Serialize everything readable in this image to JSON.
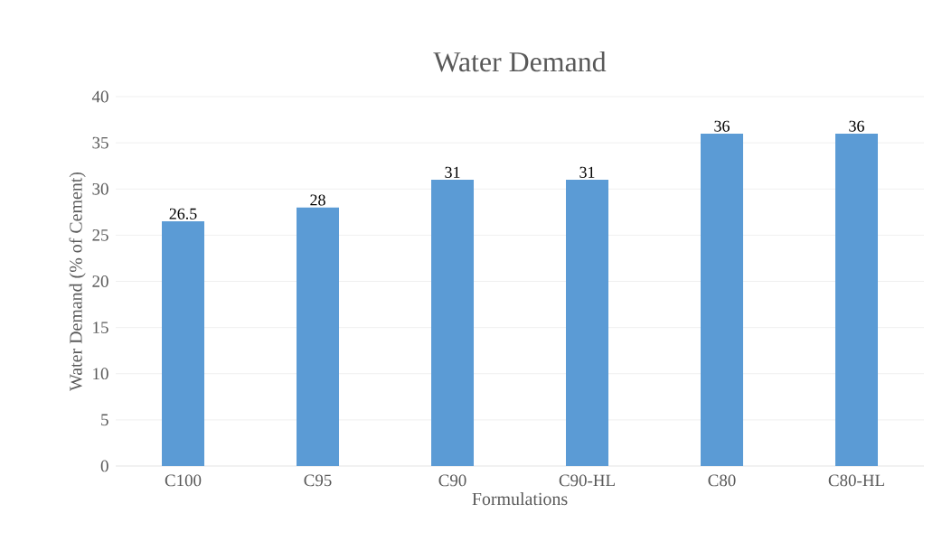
{
  "chart_data": {
    "type": "bar",
    "title": "Water Demand",
    "xlabel": "Formulations",
    "ylabel": "Water Demand (% of Cement)",
    "categories": [
      "C100",
      "C95",
      "C90",
      "C90-HL",
      "C80",
      "C80-HL"
    ],
    "values": [
      26.5,
      28,
      31,
      31,
      36,
      36
    ],
    "color": "#5b9bd5",
    "ylim": [
      0,
      40
    ],
    "yticks": [
      0,
      5,
      10,
      15,
      20,
      25,
      30,
      35,
      40
    ],
    "grid": "y",
    "data_labels": true
  }
}
